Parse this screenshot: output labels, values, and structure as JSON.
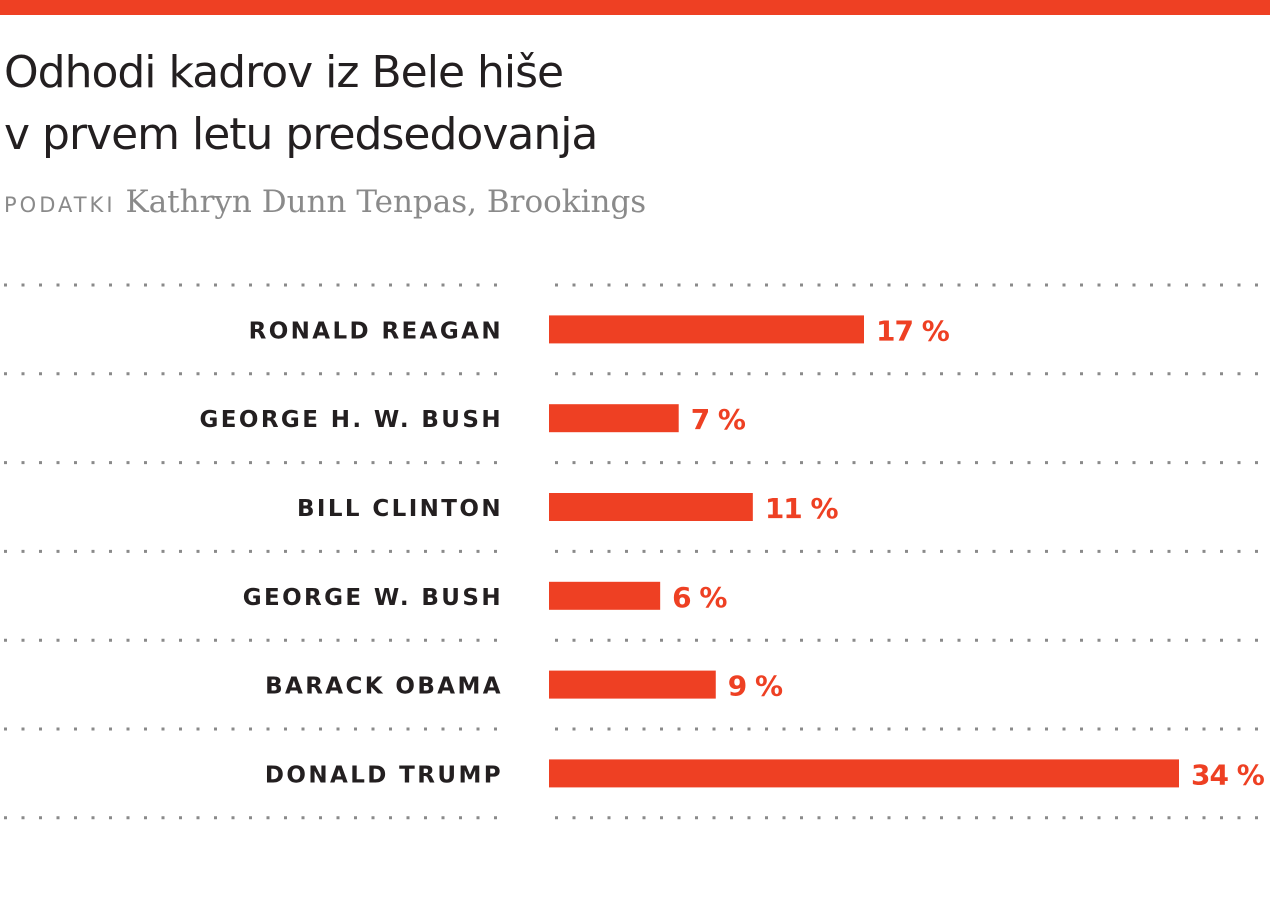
{
  "title": {
    "line1": "Odhodi kadrov iz Bele hiše",
    "line2": "v prvem letu predsedovanja"
  },
  "source": {
    "label": "PODATKI",
    "text": "Kathryn Dunn Tenpas, Brookings"
  },
  "colors": {
    "accent": "#ee4023",
    "text": "#231f20",
    "muted": "#8a8a8a",
    "gridline": "#8a8a8a"
  },
  "chart_data": {
    "type": "bar",
    "orientation": "horizontal",
    "categories": [
      "RONALD REAGAN",
      "GEORGE H. W. BUSH",
      "BILL CLINTON",
      "GEORGE W. BUSH",
      "BARACK OBAMA",
      "DONALD TRUMP"
    ],
    "values": [
      17,
      7,
      11,
      6,
      9,
      34
    ],
    "value_labels": [
      "17 %",
      "7 %",
      "11 %",
      "6 %",
      "9 %",
      "34 %"
    ],
    "title": "Odhodi kadrov iz Bele hiše v prvem letu predsedovanja",
    "xlabel": "",
    "ylabel": "",
    "xlim": [
      0,
      34
    ],
    "grid": "dotted row separators",
    "legend": "none"
  }
}
